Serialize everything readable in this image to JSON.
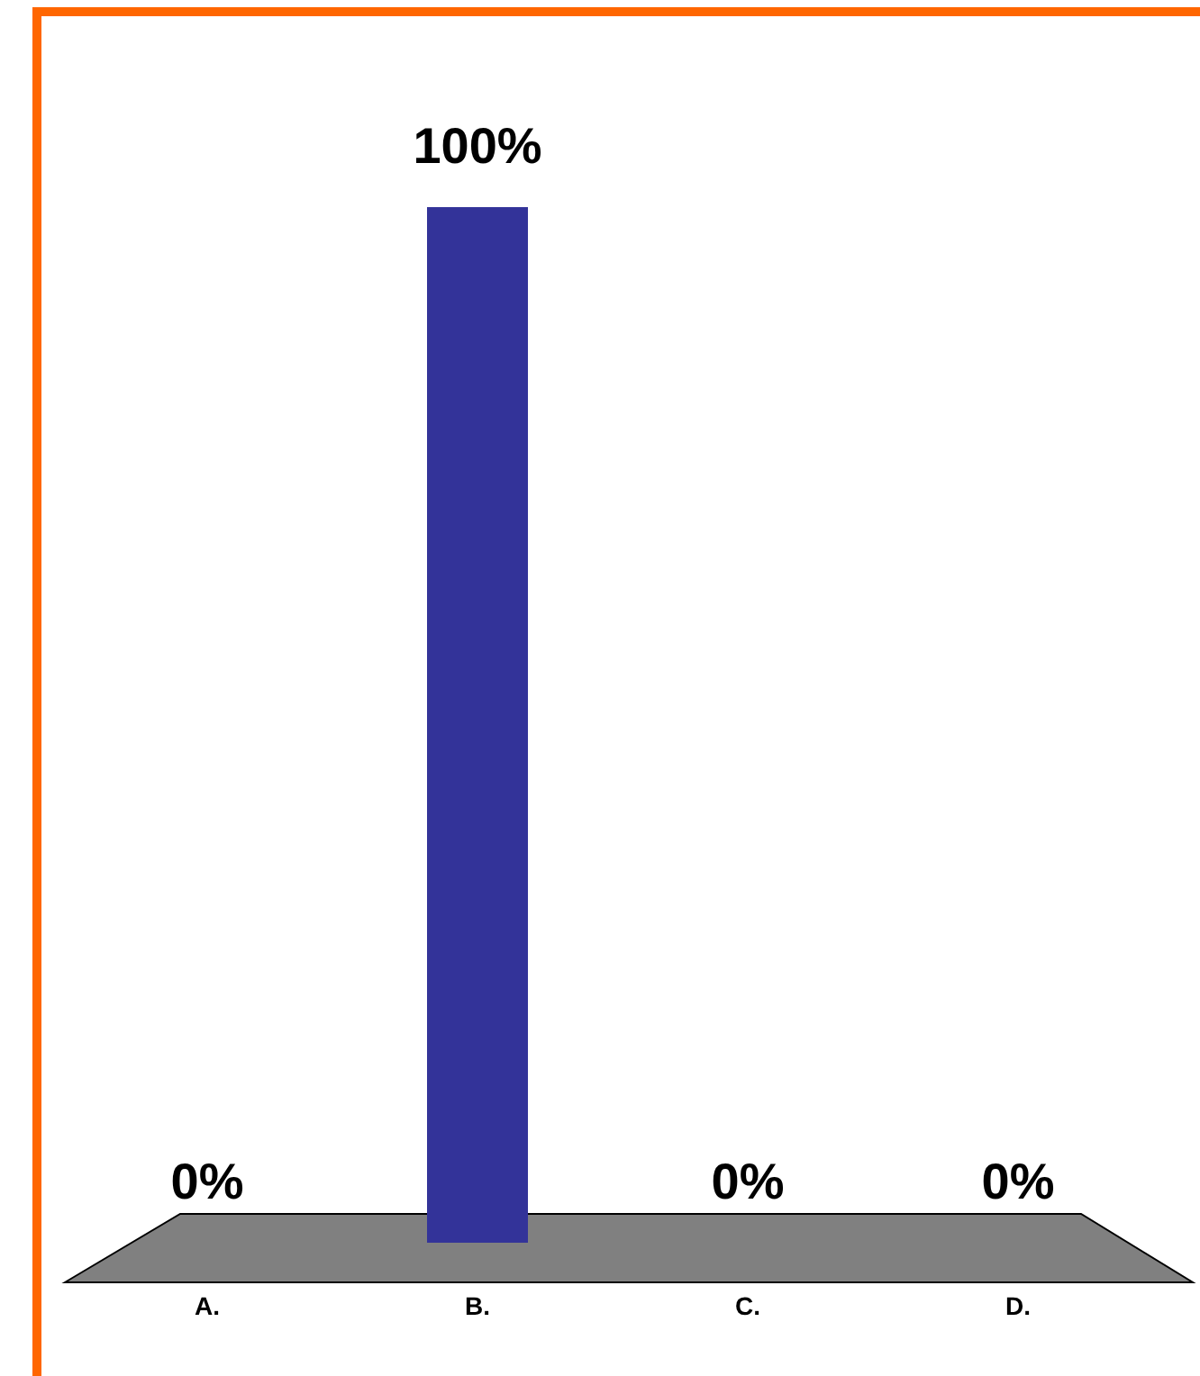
{
  "chart_data": {
    "type": "bar",
    "categories": [
      "A.",
      "B.",
      "C.",
      "D."
    ],
    "values": [
      0,
      100,
      0,
      0
    ],
    "colors": [
      "#a6c3c8",
      "#333399",
      "#008080",
      "#669900"
    ],
    "value_labels": [
      "0%",
      "100%",
      "0%",
      "0%"
    ],
    "ylim": [
      0,
      100
    ]
  }
}
